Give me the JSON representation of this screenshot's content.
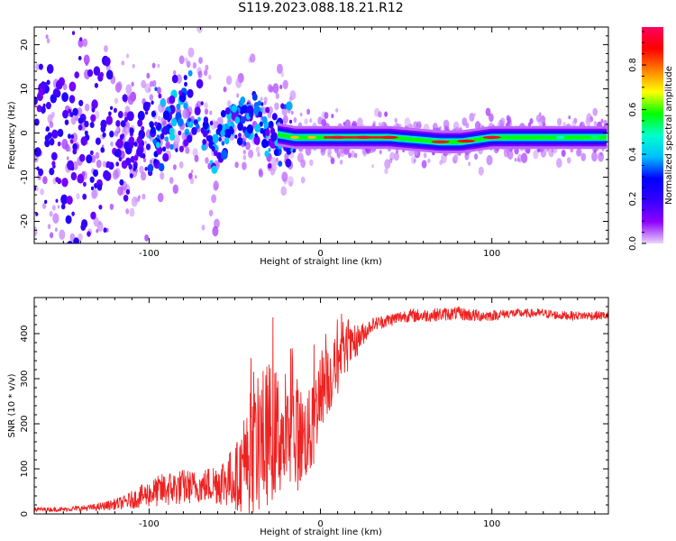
{
  "figure": {
    "title": "S119.2023.088.18.21.R12"
  },
  "chart_data": [
    {
      "type": "heatmap",
      "title": "S119.2023.088.18.21.R12",
      "xlabel": "Height of straight line (km)",
      "ylabel": "Frequency (Hz)",
      "xlim": [
        -167,
        168
      ],
      "ylim": [
        -25,
        24
      ],
      "x_ticks": [
        -100,
        0,
        100
      ],
      "x_tick_labels": [
        "-100",
        "0",
        "100"
      ],
      "y_ticks": [
        -20,
        -10,
        0,
        10,
        20
      ],
      "y_tick_labels": [
        "-20",
        "-10",
        "0",
        "10",
        "20"
      ],
      "colorbar": {
        "label": "Normalized spectral amplitude",
        "range": [
          0,
          0.97
        ],
        "ticks": [
          0.0,
          0.2,
          0.4,
          0.6,
          0.8
        ],
        "tick_labels": [
          "0.0",
          "0.2",
          "0.4",
          "0.6",
          "0.8"
        ],
        "colormap": [
          "#e8d4f8",
          "#8f00ff",
          "#3300ff",
          "#0000ff",
          "#00bfff",
          "#00ffcc",
          "#00ff00",
          "#ffff00",
          "#ff8000",
          "#ff0000",
          "#ff0060"
        ]
      },
      "ridge_frequency_hz": [
        {
          "x": -167,
          "f": 0
        },
        {
          "x": -130,
          "f": -3
        },
        {
          "x": -110,
          "f": -2
        },
        {
          "x": -90,
          "f": 2
        },
        {
          "x": -70,
          "f": 6
        },
        {
          "x": -62,
          "f": -5
        },
        {
          "x": -50,
          "f": 4
        },
        {
          "x": -40,
          "f": 4
        },
        {
          "x": -30,
          "f": 0
        },
        {
          "x": -15,
          "f": -1
        },
        {
          "x": 0,
          "f": -1
        },
        {
          "x": 40,
          "f": -1
        },
        {
          "x": 70,
          "f": -2
        },
        {
          "x": 82,
          "f": -2
        },
        {
          "x": 100,
          "f": -1
        },
        {
          "x": 168,
          "f": -1
        }
      ]
    },
    {
      "type": "line",
      "xlabel": "Height of straight line (km)",
      "ylabel": "SNR (10 * v/v)",
      "xlim": [
        -167,
        168
      ],
      "ylim": [
        0,
        480
      ],
      "x_ticks": [
        -100,
        0,
        100
      ],
      "x_tick_labels": [
        "-100",
        "0",
        "100"
      ],
      "y_ticks": [
        0,
        100,
        200,
        300,
        400
      ],
      "y_tick_labels": [
        "0",
        "100",
        "200",
        "300",
        "400"
      ],
      "color": "#ee2222",
      "series": [
        {
          "x": [
            -167,
            -150,
            -130,
            -115,
            -100,
            -90,
            -80,
            -70,
            -60,
            -50,
            -45,
            -40,
            -35,
            -30,
            -25,
            -20,
            -15,
            -10,
            -5,
            0,
            5,
            10,
            15,
            20,
            25,
            30,
            35,
            40,
            50,
            60,
            80,
            90,
            100,
            110,
            120,
            130,
            140,
            150,
            160,
            168
          ],
          "mean": [
            10,
            10,
            15,
            25,
            45,
            55,
            60,
            60,
            70,
            80,
            100,
            130,
            160,
            180,
            180,
            160,
            180,
            170,
            180,
            280,
            300,
            330,
            360,
            380,
            400,
            420,
            425,
            430,
            440,
            440,
            445,
            440,
            440,
            445,
            445,
            445,
            440,
            440,
            440,
            440
          ],
          "spread": [
            5,
            5,
            8,
            15,
            30,
            40,
            40,
            35,
            50,
            70,
            100,
            130,
            160,
            160,
            140,
            120,
            140,
            100,
            100,
            90,
            80,
            70,
            50,
            40,
            25,
            15,
            15,
            15,
            15,
            15,
            15,
            15,
            12,
            10,
            10,
            10,
            10,
            10,
            10,
            10
          ]
        }
      ]
    }
  ]
}
